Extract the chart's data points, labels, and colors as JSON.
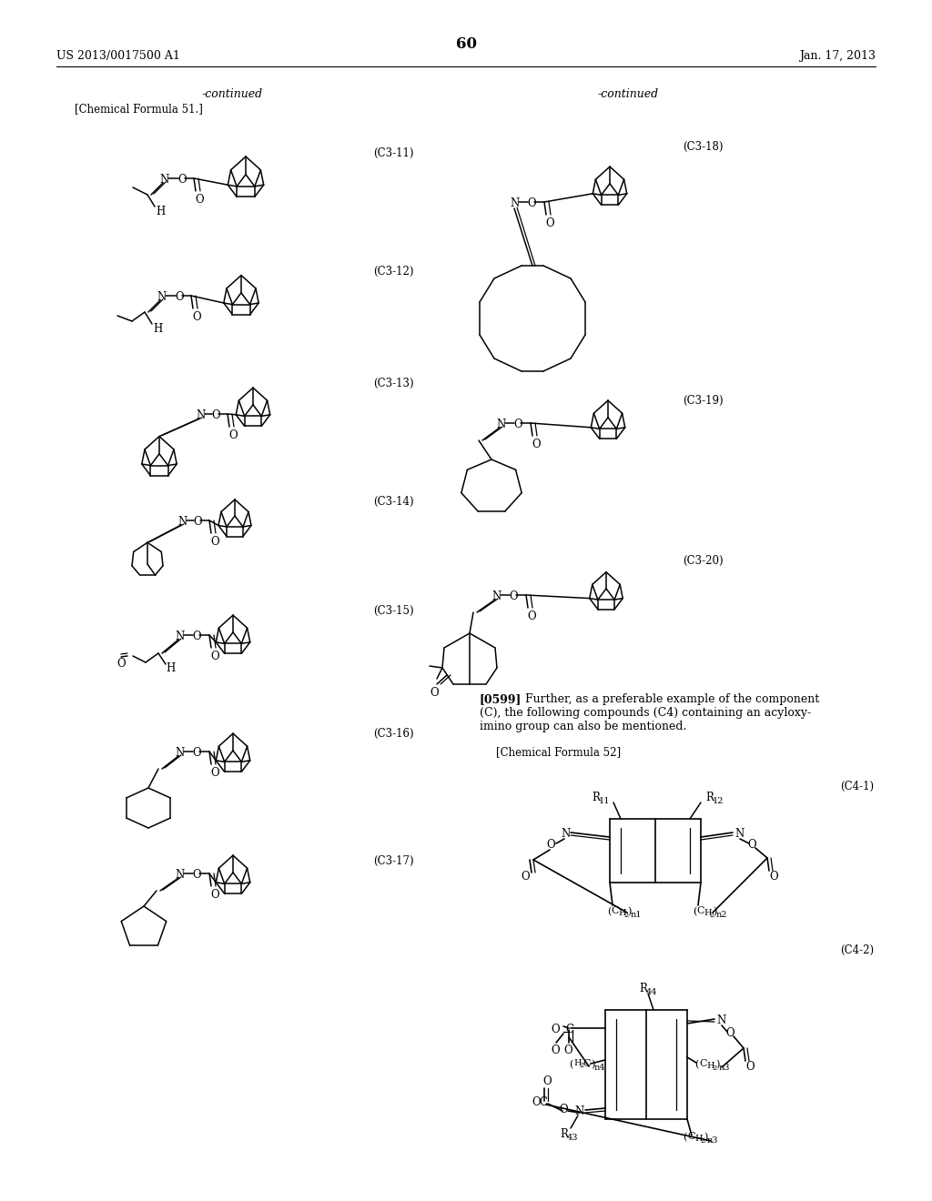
{
  "page_width": 10.24,
  "page_height": 13.2,
  "header_left": "US 2013/0017500 A1",
  "header_right": "Jan. 17, 2013",
  "page_number": "60",
  "left_continued": "-continued",
  "left_formula_label": "[Chemical Formula 51.]",
  "right_continued": "-continued",
  "paragraph_bold": "[0599]",
  "paragraph_text": "   Further, as a preferable example of the component\n(C), the following compounds (C4) containing an acyloxy-\nimino group can also be mentioned.",
  "formula52_label": "[Chemical Formula 52]",
  "left_labels": [
    "(C3-11)",
    "(C3-12)",
    "(C3-13)",
    "(C3-14)",
    "(C3-15)",
    "(C3-16)",
    "(C3-17)"
  ],
  "right_labels": [
    "(C3-18)",
    "(C3-19)",
    "(C3-20)",
    "(C4-1)",
    "(C4-2)"
  ]
}
